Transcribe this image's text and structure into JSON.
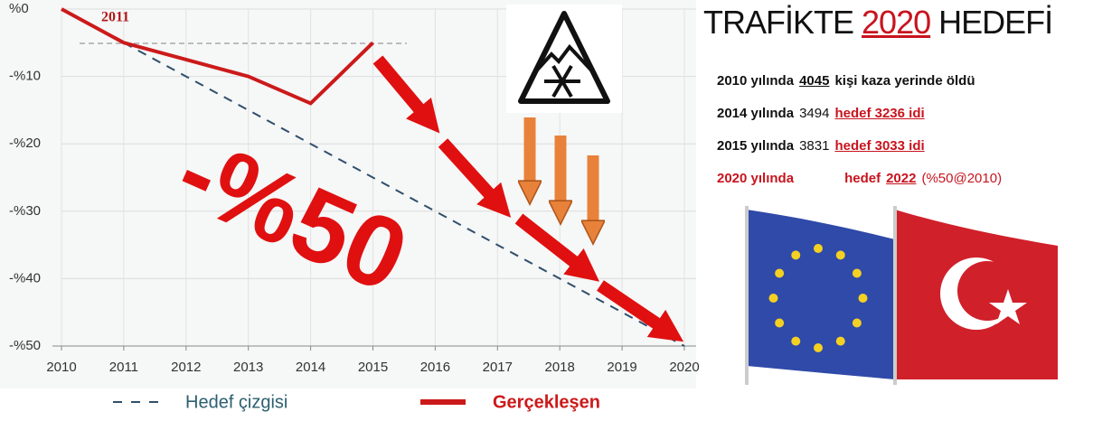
{
  "chart_data": {
    "type": "line",
    "x": [
      2010,
      2011,
      2012,
      2013,
      2014,
      2015,
      2016,
      2017,
      2018,
      2019,
      2020
    ],
    "series": [
      {
        "name": "Hedef çizgisi",
        "color": "#2f4f6b",
        "dashed": true,
        "values": [
          null,
          -5,
          -10,
          -15,
          -20,
          -25,
          -30,
          -35,
          -40,
          -45,
          -50
        ]
      },
      {
        "name": "Gerçekleşen",
        "color": "#cc1a1a",
        "dashed": false,
        "values": [
          0,
          -5,
          -7.5,
          -10,
          -14,
          -5,
          null,
          null,
          null,
          null,
          null
        ]
      }
    ],
    "xlim": [
      2010,
      2020
    ],
    "xticks": [
      2010,
      2011,
      2012,
      2013,
      2014,
      2015,
      2016,
      2017,
      2018,
      2019,
      2020
    ],
    "ylim": [
      -50,
      0
    ],
    "yticks": [
      {
        "value": 0,
        "label": "%0"
      },
      {
        "value": -10,
        "label": "-%10"
      },
      {
        "value": -20,
        "label": "-%20"
      },
      {
        "value": -30,
        "label": "-%30"
      },
      {
        "value": -40,
        "label": "-%40"
      },
      {
        "value": -50,
        "label": "-%50"
      }
    ],
    "grid": true,
    "legend": "bottom",
    "annotations": [
      "2011",
      "-%50"
    ]
  },
  "side_panel": {
    "title": [
      "TRAFİKTE",
      "2020",
      "HEDEFİ"
    ],
    "rows": [
      [
        "2010 yılında",
        "4045",
        "kişi kaza yerinde öldü"
      ],
      [
        "2014 yılında",
        "3494",
        "hedef 3236 idi"
      ],
      [
        "2015 yılında",
        "3831",
        "hedef 3033 idi"
      ],
      [
        "2020 yılında",
        "hedef",
        "2022",
        "(%50@2010)"
      ]
    ]
  }
}
